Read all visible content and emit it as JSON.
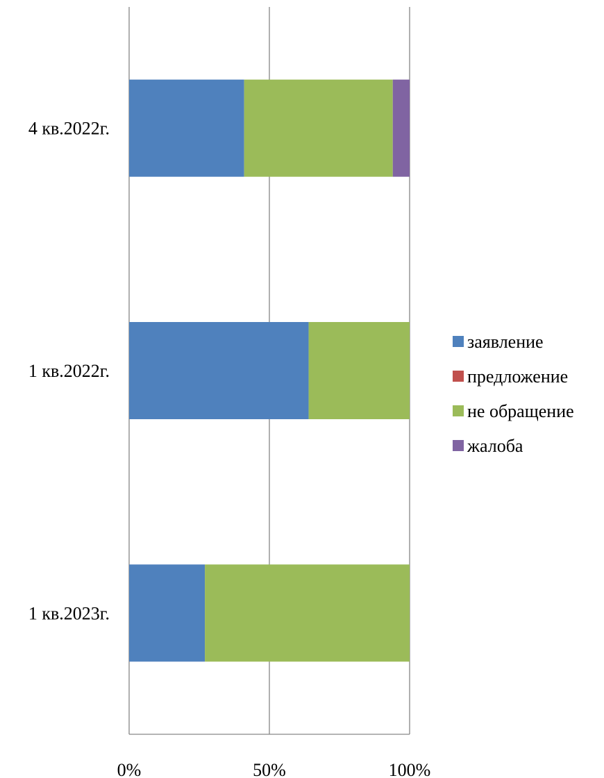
{
  "chart_data": {
    "type": "bar",
    "orientation": "horizontal",
    "stacked": "percent",
    "categories": [
      "4 кв.2022г.",
      "1 кв.2022г.",
      "1 кв.2023г."
    ],
    "series": [
      {
        "name": "заявление",
        "color": "#4F81BD",
        "values": [
          41,
          64,
          27
        ]
      },
      {
        "name": "предложение",
        "color": "#C0504D",
        "values": [
          0,
          0,
          0
        ]
      },
      {
        "name": "не обращение",
        "color": "#9BBB59",
        "values": [
          53,
          36,
          73
        ]
      },
      {
        "name": "жалоба",
        "color": "#8064A2",
        "values": [
          6,
          0,
          0
        ]
      }
    ],
    "x_ticks": [
      "0%",
      "50%",
      "100%"
    ],
    "xlim": [
      0,
      100
    ],
    "grid": true,
    "legend_position": "right"
  }
}
